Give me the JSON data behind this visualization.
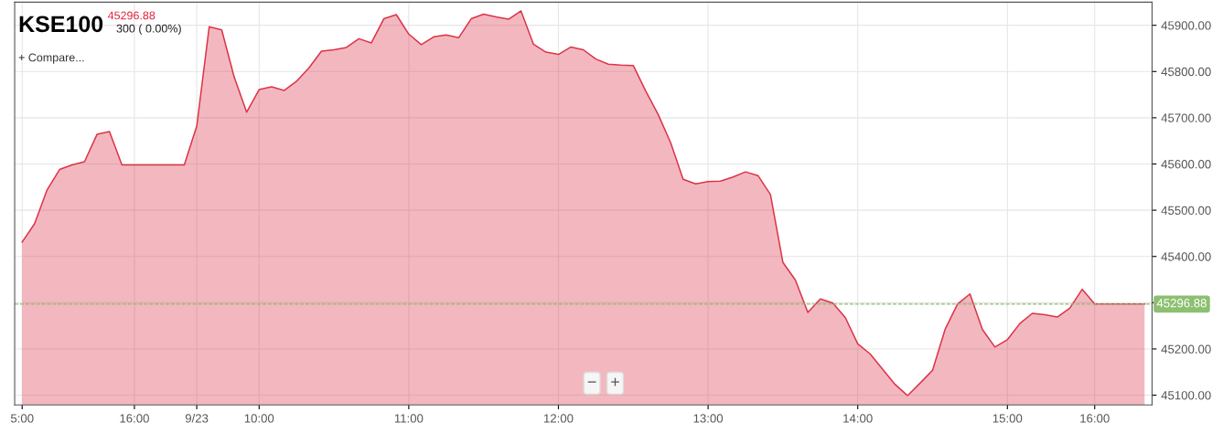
{
  "chart_data": {
    "type": "area",
    "title": "KSE100",
    "annotations": [
      "45296.88",
      "300 ( 0.00%)",
      "+ Compare...",
      "−",
      "+"
    ],
    "categories": [
      "5:00",
      null,
      null,
      null,
      null,
      null,
      null,
      null,
      null,
      "16:00",
      null,
      null,
      null,
      null,
      "9/23",
      null,
      null,
      null,
      null,
      "10:00",
      null,
      null,
      null,
      null,
      null,
      null,
      null,
      null,
      null,
      null,
      null,
      "11:00",
      null,
      null,
      null,
      null,
      null,
      null,
      null,
      null,
      null,
      null,
      null,
      "12:00",
      null,
      null,
      null,
      null,
      null,
      null,
      null,
      null,
      null,
      null,
      null,
      "13:00",
      null,
      null,
      null,
      null,
      null,
      null,
      null,
      null,
      null,
      null,
      null,
      "14:00",
      null,
      null,
      null,
      null,
      null,
      null,
      null,
      null,
      null,
      null,
      null,
      "15:00",
      null,
      null,
      null,
      null,
      null,
      null,
      "16:00",
      null,
      null,
      null,
      null
    ],
    "series": [
      {
        "color": "#dc3448",
        "values": [
          45431,
          45471,
          45544,
          45588,
          45598,
          45605,
          45664,
          45670,
          45598,
          45598,
          45598,
          45598,
          45598,
          45598,
          45682,
          45897,
          45890,
          45788,
          45712,
          45761,
          45767,
          45759,
          45779,
          45808,
          45844,
          45847,
          45852,
          45871,
          45862,
          45914,
          45923,
          45881,
          45858,
          45875,
          45879,
          45873,
          45914,
          45924,
          45918,
          45913,
          45931,
          45859,
          45842,
          45837,
          45853,
          45847,
          45827,
          45816,
          45814,
          45813,
          45758,
          45707,
          45646,
          45567,
          45557,
          45562,
          45563,
          45572,
          45583,
          45575,
          45534,
          45387,
          45349,
          45279,
          45308,
          45299,
          45268,
          45211,
          45189,
          45156,
          45123,
          45099,
          45126,
          45154,
          45242,
          45297,
          45319,
          45242,
          45204,
          45220,
          45255,
          45277,
          45274,
          45269,
          45288,
          45329,
          45297,
          45297,
          45297,
          45297,
          45297
        ]
      }
    ],
    "ylim": [
      45079,
      45950
    ],
    "yticks": [
      {
        "value": 45100,
        "label": "45100.00"
      },
      {
        "value": 45200,
        "label": "45200.00"
      },
      {
        "value": 45300,
        "label": null
      },
      {
        "value": 45400,
        "label": "45400.00"
      },
      {
        "value": 45500,
        "label": "45500.00"
      },
      {
        "value": 45600,
        "label": "45600.00"
      },
      {
        "value": 45700,
        "label": "45700.00"
      },
      {
        "value": 45800,
        "label": "45800.00"
      },
      {
        "value": 45900,
        "label": "45900.00"
      }
    ],
    "ref_lines": [
      {
        "axis": "y",
        "value": 45296.88,
        "label": "45296.88",
        "color": "#8cc070",
        "line_style": "dashed"
      }
    ],
    "grid": true
  }
}
